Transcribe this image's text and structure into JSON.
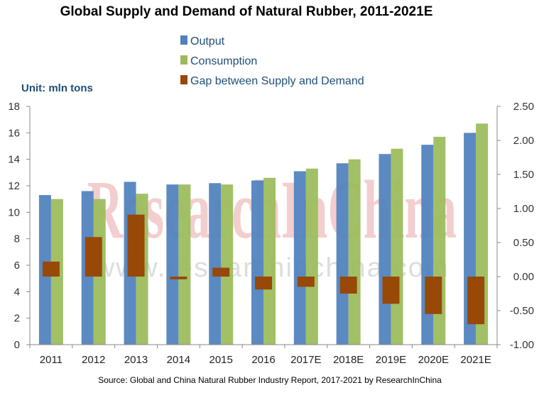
{
  "chart_data": {
    "type": "bar",
    "title": "Global Supply and Demand of Natural Rubber, 2011-2021E",
    "unit_label": "Unit: mln tons",
    "categories": [
      "2011",
      "2012",
      "2013",
      "2014",
      "2015",
      "2016",
      "2017E",
      "2018E",
      "2019E",
      "2020E",
      "2021E"
    ],
    "series": [
      {
        "name": "Output",
        "axis": "left",
        "color": "#4f81bd",
        "values": [
          11.3,
          11.6,
          12.3,
          12.1,
          12.2,
          12.4,
          13.1,
          13.7,
          14.4,
          15.1,
          16.0
        ]
      },
      {
        "name": "Consumption",
        "axis": "left",
        "color": "#9bbb59",
        "values": [
          11.0,
          11.0,
          11.4,
          12.1,
          12.1,
          12.6,
          13.3,
          14.0,
          14.8,
          15.7,
          16.7
        ]
      },
      {
        "name": "Gap between Supply and Demand",
        "axis": "right",
        "color": "#984807",
        "values": [
          0.22,
          0.58,
          0.91,
          -0.04,
          0.13,
          -0.19,
          -0.15,
          -0.25,
          -0.4,
          -0.55,
          -0.7
        ]
      }
    ],
    "y_left": {
      "range": [
        0,
        18
      ],
      "ticks": [
        "0",
        "2",
        "4",
        "6",
        "8",
        "10",
        "12",
        "14",
        "16",
        "18"
      ]
    },
    "y_right": {
      "range": [
        -1.0,
        2.5
      ],
      "ticks": [
        "-1.00",
        "-0.50",
        "0.00",
        "0.50",
        "1.00",
        "1.50",
        "2.00",
        "2.50"
      ]
    },
    "grid": false,
    "legend_position": "top-center",
    "source": "Source: Global and China Natural Rubber Industry Report, 2017-2021 by ResearchInChina",
    "watermark": {
      "brand": "ResearchInChina",
      "url": "www.researchinchina.com"
    }
  }
}
